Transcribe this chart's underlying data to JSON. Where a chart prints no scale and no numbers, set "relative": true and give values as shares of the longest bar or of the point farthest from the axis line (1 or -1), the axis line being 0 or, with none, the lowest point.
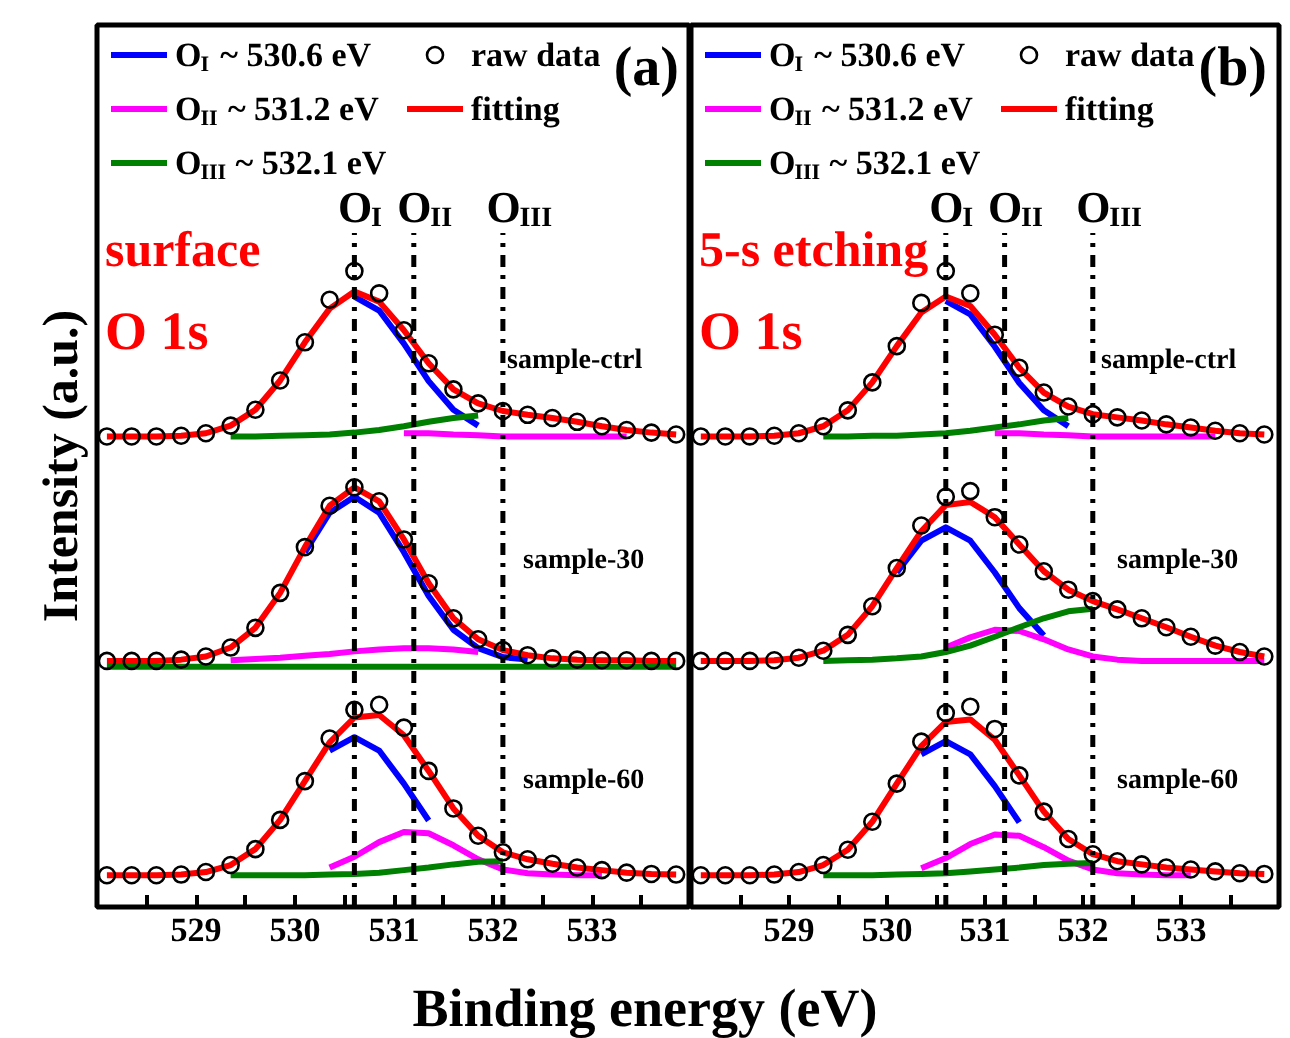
{
  "chart_data": [
    {
      "type": "line",
      "title": "(a)",
      "ylabel": "Intensity (a.u.)",
      "xlabel": "Binding energy (eV)",
      "relative": true,
      "grid": false,
      "legend": "top left",
      "tick_labels": "x",
      "x": [
        528.1,
        528.35,
        528.6,
        528.85,
        529.1,
        529.35,
        529.6,
        529.85,
        530.1,
        530.35,
        530.6,
        530.85,
        531.1,
        531.35,
        531.6,
        531.85,
        532.1,
        532.35,
        532.6,
        532.85,
        533.1,
        533.35,
        533.6,
        533.85
      ],
      "xlim": [
        528,
        534
      ],
      "xticks": [
        {
          "value": 528.5,
          "label": null
        },
        529,
        {
          "value": 529.5,
          "label": null
        },
        530,
        {
          "value": 530.5,
          "label": null
        },
        531,
        {
          "value": 531.5,
          "label": null
        },
        532,
        {
          "value": 532.5,
          "label": null
        },
        533,
        {
          "value": 533.5,
          "label": null
        }
      ],
      "ref_lines": [
        {
          "axis": "x",
          "value": 530.6,
          "label": "O$_{I}$",
          "line_style": "dashdot",
          "color": "#000000"
        },
        {
          "axis": "x",
          "value": 531.2,
          "label": "O$_{II}$",
          "line_style": "dashdot",
          "color": "#000000"
        },
        {
          "axis": "x",
          "value": 532.1,
          "label": "O$_{III}$",
          "line_style": "dashdot",
          "color": "#000000"
        }
      ],
      "annotations": [
        "surface",
        "O 1s",
        "sample-ctrl",
        "sample-30",
        "sample-60"
      ],
      "series": [
        {
          "name": "O$_{I}$ ~ 530.6 eV",
          "color": "#0000ff",
          "values": [
            null,
            null,
            null,
            null,
            null,
            null,
            null,
            null,
            null,
            null,
            0.96,
            0.938,
            0.886,
            0.827,
            0.782,
            0.757,
            null,
            null,
            null,
            null,
            null,
            null,
            null,
            null
          ]
        },
        {
          "name": "O$_{II}$ ~ 531.2 eV",
          "color": "#ff00ff",
          "values": [
            null,
            null,
            null,
            null,
            null,
            null,
            null,
            null,
            null,
            null,
            null,
            null,
            0.745,
            0.745,
            0.743,
            0.742,
            0.74,
            0.74,
            0.74,
            0.74,
            0.74,
            0.74,
            null,
            null
          ]
        },
        {
          "name": "O$_{III}$ ~ 532.1 eV",
          "color": "#008000",
          "values": [
            null,
            null,
            null,
            null,
            null,
            0.74,
            0.74,
            0.741,
            0.742,
            0.743,
            0.746,
            0.75,
            0.756,
            0.763,
            0.769,
            0.773,
            null,
            null,
            null,
            null,
            null,
            null,
            null,
            null
          ]
        },
        {
          "name": "raw data",
          "type": "scatter",
          "marker": "circle",
          "color": "#000000",
          "values": [
            0.74,
            0.74,
            0.74,
            0.741,
            0.745,
            0.757,
            0.782,
            0.828,
            0.888,
            0.955,
            1.0,
            0.965,
            0.907,
            0.855,
            0.814,
            0.792,
            0.78,
            0.774,
            0.769,
            0.763,
            0.756,
            0.75,
            0.746,
            0.743
          ]
        },
        {
          "name": "fitting",
          "color": "#ff0000",
          "values": [
            0.74,
            0.74,
            0.74,
            0.741,
            0.745,
            0.757,
            0.782,
            0.828,
            0.888,
            0.941,
            0.968,
            0.952,
            0.907,
            0.855,
            0.814,
            0.792,
            0.78,
            0.774,
            0.769,
            0.763,
            0.756,
            0.75,
            0.746,
            0.743
          ]
        },
        {
          "color": "#0000ff",
          "values": [
            null,
            null,
            null,
            null,
            null,
            null,
            null,
            null,
            0.558,
            0.62,
            0.645,
            0.62,
            0.558,
            0.489,
            0.436,
            0.407,
            0.393,
            0.389,
            null,
            null,
            null,
            null,
            null,
            null
          ]
        },
        {
          "color": "#ff00ff",
          "values": [
            null,
            null,
            null,
            null,
            null,
            0.388,
            0.39,
            0.392,
            0.395,
            0.398,
            0.402,
            0.405,
            0.407,
            0.407,
            0.405,
            0.401,
            null,
            null,
            null,
            null,
            null,
            null,
            null,
            null
          ]
        },
        {
          "color": "#008000",
          "values": [
            0.378,
            0.378,
            0.378,
            0.378,
            0.378,
            0.378,
            0.378,
            0.378,
            0.378,
            0.378,
            0.378,
            0.378,
            0.378,
            0.378,
            0.378,
            0.378,
            0.378,
            0.378,
            0.378,
            0.378,
            0.378,
            0.378,
            0.378,
            0.378
          ]
        },
        {
          "type": "scatter",
          "marker": "circle",
          "color": "#000000",
          "values": [
            0.387,
            0.387,
            0.387,
            0.389,
            0.394,
            0.408,
            0.439,
            0.494,
            0.566,
            0.631,
            0.66,
            0.638,
            0.578,
            0.509,
            0.454,
            0.421,
            0.404,
            0.396,
            0.391,
            0.389,
            0.388,
            0.388,
            0.387,
            0.387
          ]
        },
        {
          "color": "#ff0000",
          "values": [
            0.387,
            0.387,
            0.387,
            0.389,
            0.394,
            0.408,
            0.439,
            0.494,
            0.566,
            0.631,
            0.66,
            0.638,
            0.578,
            0.509,
            0.454,
            0.421,
            0.404,
            0.396,
            0.391,
            0.389,
            0.388,
            0.388,
            0.387,
            0.387
          ]
        },
        {
          "color": "#0000ff",
          "values": [
            null,
            null,
            null,
            null,
            null,
            null,
            null,
            null,
            null,
            0.246,
            0.267,
            0.246,
            0.194,
            0.136,
            null,
            null,
            null,
            null,
            null,
            null,
            null,
            null,
            null,
            null
          ]
        },
        {
          "color": "#ff00ff",
          "values": [
            null,
            null,
            null,
            null,
            null,
            null,
            null,
            null,
            null,
            0.062,
            0.079,
            0.102,
            0.118,
            0.116,
            0.097,
            0.075,
            0.059,
            0.053,
            0.051,
            0.05,
            0.05,
            null,
            null,
            null
          ]
        },
        {
          "color": "#008000",
          "values": [
            null,
            null,
            null,
            null,
            null,
            0.05,
            0.05,
            0.05,
            0.05,
            0.051,
            0.052,
            0.054,
            0.058,
            0.062,
            0.067,
            0.071,
            0.072,
            null,
            null,
            null,
            null,
            null,
            null,
            null
          ]
        },
        {
          "type": "scatter",
          "marker": "circle",
          "color": "#000000",
          "values": [
            0.05,
            0.05,
            0.05,
            0.051,
            0.055,
            0.066,
            0.091,
            0.137,
            0.198,
            0.265,
            0.31,
            0.318,
            0.282,
            0.214,
            0.155,
            0.112,
            0.086,
            0.075,
            0.068,
            0.062,
            0.058,
            0.054,
            0.052,
            0.051
          ]
        },
        {
          "color": "#ff0000",
          "values": [
            0.05,
            0.05,
            0.05,
            0.051,
            0.055,
            0.066,
            0.091,
            0.137,
            0.198,
            0.259,
            0.298,
            0.302,
            0.27,
            0.214,
            0.155,
            0.112,
            0.086,
            0.075,
            0.068,
            0.062,
            0.058,
            0.054,
            0.052,
            0.051
          ]
        }
      ]
    },
    {
      "type": "line",
      "title": "(b)",
      "relative": true,
      "grid": false,
      "legend": "top left",
      "tick_labels": "x",
      "x": [
        528.1,
        528.35,
        528.6,
        528.85,
        529.1,
        529.35,
        529.6,
        529.85,
        530.1,
        530.35,
        530.6,
        530.85,
        531.1,
        531.35,
        531.6,
        531.85,
        532.1,
        532.35,
        532.6,
        532.85,
        533.1,
        533.35,
        533.6,
        533.85
      ],
      "xlim": [
        528,
        534
      ],
      "xticks": [
        {
          "value": 528.5,
          "label": null
        },
        529,
        {
          "value": 529.5,
          "label": null
        },
        530,
        {
          "value": 530.5,
          "label": null
        },
        531,
        {
          "value": 531.5,
          "label": null
        },
        532,
        {
          "value": 532.5,
          "label": null
        },
        533,
        {
          "value": 533.5,
          "label": null
        }
      ],
      "ref_lines": [
        {
          "axis": "x",
          "value": 530.6,
          "label": "O$_{I}$",
          "line_style": "dashdot",
          "color": "#000000"
        },
        {
          "axis": "x",
          "value": 531.2,
          "label": "O$_{II}$",
          "line_style": "dashdot",
          "color": "#000000"
        },
        {
          "axis": "x",
          "value": 532.1,
          "label": "O$_{III}$",
          "line_style": "dashdot",
          "color": "#000000"
        }
      ],
      "annotations": [
        "5-s etching",
        "O 1s",
        "sample-ctrl",
        "sample-30",
        "sample-60"
      ],
      "series": [
        {
          "name": "O$_{I}$ ~ 530.6 eV",
          "color": "#0000ff",
          "values": [
            null,
            null,
            null,
            null,
            null,
            null,
            null,
            null,
            null,
            null,
            0.953,
            0.932,
            0.881,
            0.824,
            0.781,
            0.756,
            null,
            null,
            null,
            null,
            null,
            null,
            null,
            null
          ]
        },
        {
          "name": "O$_{II}$ ~ 531.2 eV",
          "color": "#ff00ff",
          "values": [
            null,
            null,
            null,
            null,
            null,
            null,
            null,
            null,
            null,
            null,
            null,
            null,
            0.745,
            0.745,
            0.743,
            0.742,
            0.74,
            0.74,
            0.74,
            0.74,
            0.74,
            0.74,
            null,
            null
          ]
        },
        {
          "name": "O$_{III}$ ~ 532.1 eV",
          "color": "#008000",
          "values": [
            null,
            null,
            null,
            null,
            null,
            0.74,
            0.74,
            0.741,
            0.741,
            0.743,
            0.745,
            0.749,
            0.754,
            0.759,
            0.765,
            0.769,
            null,
            null,
            null,
            null,
            null,
            null,
            null,
            null
          ]
        },
        {
          "name": "raw data",
          "type": "scatter",
          "marker": "circle",
          "color": "#000000",
          "values": [
            0.74,
            0.74,
            0.74,
            0.741,
            0.745,
            0.756,
            0.781,
            0.825,
            0.882,
            0.95,
            1.0,
            0.965,
            0.9,
            0.848,
            0.809,
            0.787,
            0.775,
            0.77,
            0.765,
            0.759,
            0.754,
            0.749,
            0.745,
            0.743
          ]
        },
        {
          "name": "fitting",
          "color": "#ff0000",
          "values": [
            0.74,
            0.74,
            0.74,
            0.741,
            0.745,
            0.756,
            0.781,
            0.825,
            0.882,
            0.935,
            0.96,
            0.945,
            0.9,
            0.848,
            0.809,
            0.787,
            0.775,
            0.77,
            0.765,
            0.759,
            0.754,
            0.749,
            0.745,
            0.743
          ]
        },
        {
          "color": "#0000ff",
          "values": [
            null,
            null,
            null,
            null,
            null,
            null,
            null,
            null,
            0.526,
            0.576,
            0.597,
            0.576,
            0.526,
            0.47,
            0.427,
            null,
            null,
            null,
            null,
            null,
            null,
            null,
            null,
            null
          ]
        },
        {
          "color": "#ff00ff",
          "values": [
            null,
            null,
            null,
            null,
            null,
            null,
            null,
            null,
            null,
            null,
            0.408,
            0.424,
            0.436,
            0.434,
            0.421,
            0.405,
            0.394,
            0.389,
            0.387,
            0.387,
            0.387,
            0.387,
            0.387,
            0.387
          ]
        },
        {
          "color": "#008000",
          "values": [
            null,
            null,
            null,
            null,
            null,
            0.387,
            0.388,
            0.389,
            0.391,
            0.394,
            0.401,
            0.411,
            0.425,
            0.44,
            0.454,
            0.465,
            0.469,
            null,
            null,
            null,
            null,
            null,
            null,
            null
          ]
        },
        {
          "type": "scatter",
          "marker": "circle",
          "color": "#000000",
          "values": [
            0.387,
            0.387,
            0.387,
            0.388,
            0.392,
            0.403,
            0.428,
            0.473,
            0.533,
            0.6,
            0.645,
            0.654,
            0.613,
            0.57,
            0.528,
            0.499,
            0.481,
            0.468,
            0.454,
            0.44,
            0.425,
            0.411,
            0.401,
            0.394
          ]
        },
        {
          "color": "#ff0000",
          "values": [
            0.387,
            0.387,
            0.387,
            0.388,
            0.392,
            0.403,
            0.428,
            0.473,
            0.533,
            0.591,
            0.632,
            0.637,
            0.613,
            0.57,
            0.528,
            0.499,
            0.481,
            0.468,
            0.454,
            0.44,
            0.425,
            0.411,
            0.401,
            0.394
          ]
        },
        {
          "color": "#0000ff",
          "values": [
            null,
            null,
            null,
            null,
            null,
            null,
            null,
            null,
            null,
            0.24,
            0.261,
            0.24,
            0.19,
            0.133,
            null,
            null,
            null,
            null,
            null,
            null,
            null,
            null,
            null,
            null
          ]
        },
        {
          "color": "#ff00ff",
          "values": [
            null,
            null,
            null,
            null,
            null,
            null,
            null,
            null,
            null,
            0.061,
            0.077,
            0.099,
            0.114,
            0.112,
            0.094,
            0.073,
            0.059,
            0.053,
            0.051,
            0.05,
            0.05,
            null,
            null,
            null
          ]
        },
        {
          "color": "#008000",
          "values": [
            null,
            null,
            null,
            null,
            null,
            0.05,
            0.05,
            0.05,
            0.051,
            0.052,
            0.053,
            0.056,
            0.059,
            0.062,
            0.066,
            0.068,
            0.069,
            null,
            null,
            null,
            null,
            null,
            null,
            null
          ]
        },
        {
          "type": "scatter",
          "marker": "circle",
          "color": "#000000",
          "values": [
            0.05,
            0.05,
            0.05,
            0.051,
            0.055,
            0.066,
            0.09,
            0.134,
            0.194,
            0.26,
            0.305,
            0.315,
            0.28,
            0.207,
            0.15,
            0.107,
            0.083,
            0.072,
            0.067,
            0.062,
            0.059,
            0.056,
            0.053,
            0.052
          ]
        },
        {
          "color": "#ff0000",
          "values": [
            0.05,
            0.05,
            0.05,
            0.051,
            0.055,
            0.066,
            0.09,
            0.134,
            0.194,
            0.253,
            0.291,
            0.295,
            0.263,
            0.207,
            0.15,
            0.107,
            0.083,
            0.072,
            0.067,
            0.062,
            0.059,
            0.056,
            0.053,
            0.052
          ]
        }
      ]
    }
  ]
}
